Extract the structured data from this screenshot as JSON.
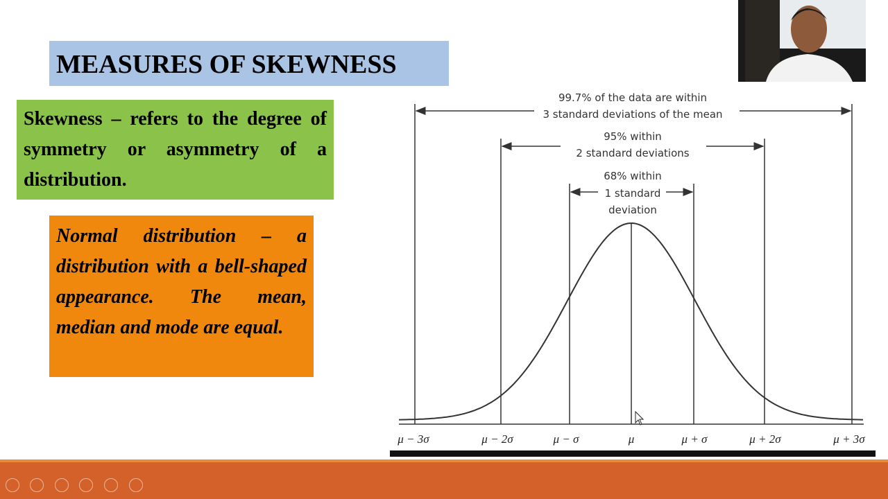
{
  "slide": {
    "title": "MEASURES OF SKEWNESS",
    "definition": "Skewness – refers to the degree of symmetry or asymmetry of a distribution.",
    "note": "Normal distribution – a distribution with a bell-shaped appearance.  The mean, median and mode are equal."
  },
  "diagram": {
    "annotations": [
      [
        "99.7% of the data are within",
        "3 standard deviations of the mean"
      ],
      [
        "95% within",
        "2 standard deviations"
      ],
      [
        "68% within",
        "1 standard",
        "deviation"
      ]
    ],
    "axis_labels": [
      "μ − 3σ",
      "μ − 2σ",
      "μ − σ",
      "μ",
      "μ + σ",
      "μ + 2σ",
      "μ + 3σ"
    ]
  }
}
